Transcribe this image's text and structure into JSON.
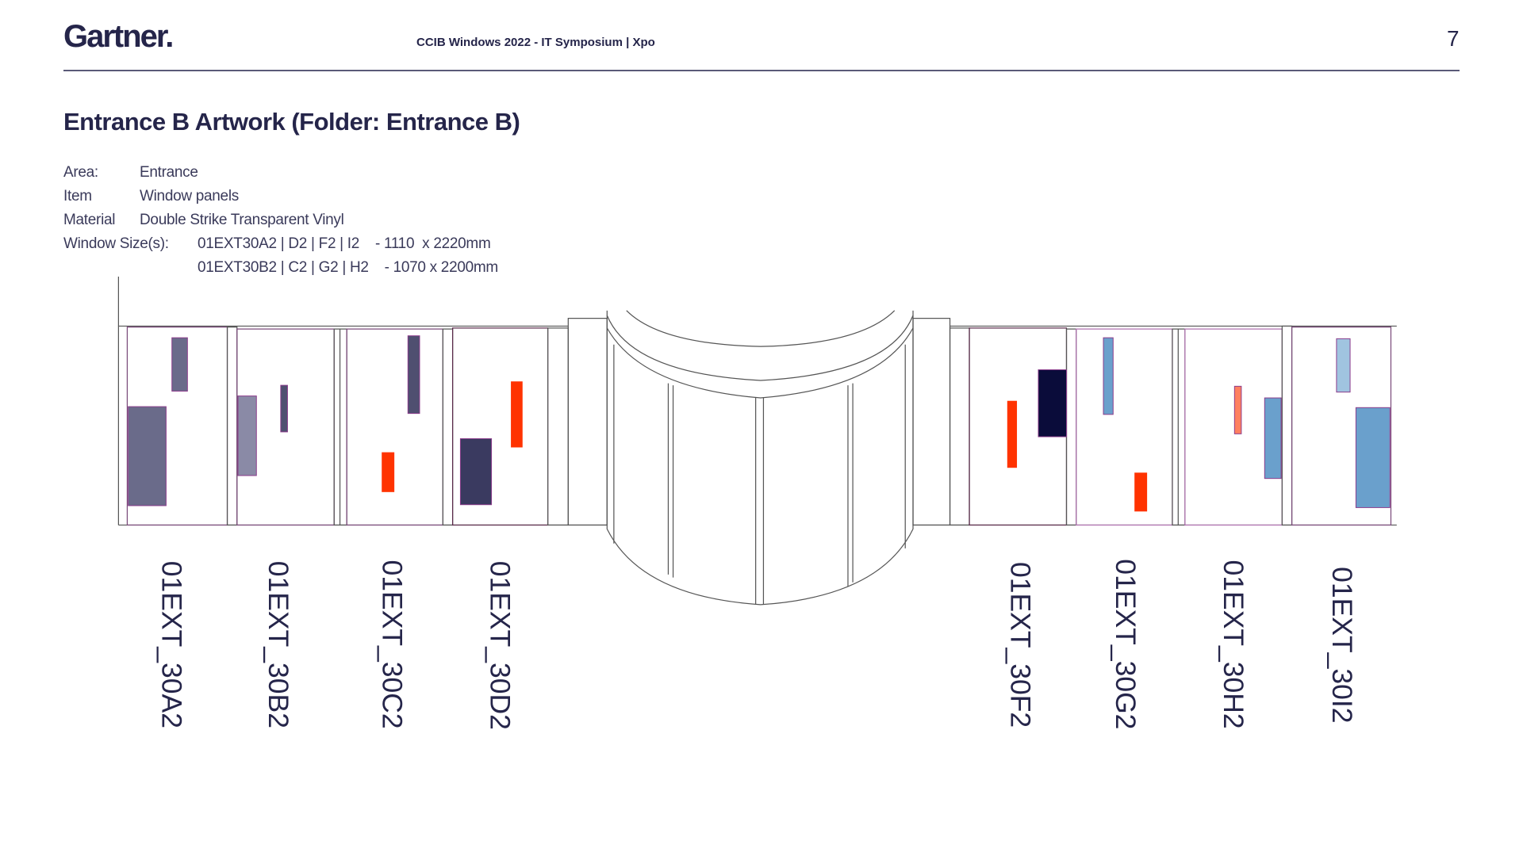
{
  "header": {
    "logo": "Gartner.",
    "subtitle": "CCIB Windows 2022 - IT Symposium | Xpo",
    "page_number": "7"
  },
  "title": "Entrance B Artwork (Folder: Entrance B)",
  "info": [
    {
      "label": "Area:",
      "value": "Entrance"
    },
    {
      "label": "Item",
      "value": "Window panels"
    },
    {
      "label": "Material",
      "value": "Double Strike Transparent Vinyl"
    },
    {
      "label": "Window Size(s):",
      "value": "01EXT30A2 | D2 | F2 | I2    - 1110  x 2220mm"
    },
    {
      "label": "",
      "value": "01EXT30B2 | C2 | G2 | H2    - 1070 x 2200mm"
    }
  ],
  "panels": [
    {
      "id": "01EXT_30A2"
    },
    {
      "id": "01EXT_30B2"
    },
    {
      "id": "01EXT_30C2"
    },
    {
      "id": "01EXT_30D2"
    },
    {
      "id": "01EXT_30F2"
    },
    {
      "id": "01EXT_30G2"
    },
    {
      "id": "01EXT_30H2"
    },
    {
      "id": "01EXT_30I2"
    }
  ],
  "colors": {
    "navy": "#25254a",
    "slate": "#6a6b8a",
    "red": "#ff3300",
    "blue": "#6aa0cc"
  }
}
